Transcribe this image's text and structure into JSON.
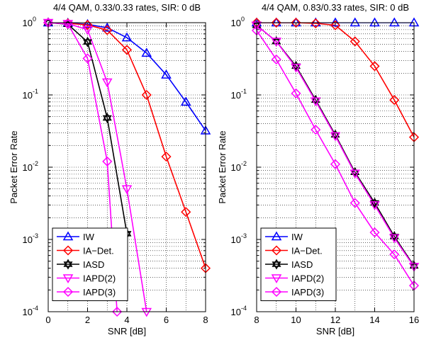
{
  "chart_data": [
    {
      "type": "line",
      "title": "4/4 QAM, 0.33/0.33 rates, SIR: 0 dB",
      "xlabel": "SNR [dB]",
      "ylabel": "Packet Error Rate",
      "yscale": "log",
      "xlim": [
        0,
        8
      ],
      "ylim": [
        0.0001,
        1
      ],
      "xticks": [
        "0",
        "2",
        "4",
        "6",
        "8"
      ],
      "grid": true,
      "legend_position": "bottom-right",
      "series": [
        {
          "name": "IW",
          "color": "#0000ff",
          "marker": "triangle-up",
          "x": [
            0,
            1,
            2,
            3,
            4,
            5,
            6,
            7,
            8
          ],
          "y": [
            1,
            0.99,
            0.95,
            0.85,
            0.62,
            0.38,
            0.19,
            0.08,
            0.032
          ]
        },
        {
          "name": "IA−Det.",
          "color": "#ff0000",
          "marker": "diamond",
          "x": [
            0,
            1,
            2,
            3,
            4,
            5,
            6,
            7,
            8
          ],
          "y": [
            1,
            0.98,
            0.93,
            0.79,
            0.42,
            0.1,
            0.014,
            0.0024,
            0.0004
          ]
        },
        {
          "name": "IASD",
          "color": "#000000",
          "marker": "hexagram",
          "x": [
            0,
            1,
            2,
            3,
            4
          ],
          "y": [
            1,
            0.95,
            0.54,
            0.048,
            0.0012
          ]
        },
        {
          "name": "IAPD(2)",
          "color": "#ff00ff",
          "marker": "triangle-down",
          "x": [
            0,
            1,
            2,
            3,
            4,
            5
          ],
          "y": [
            1,
            0.97,
            0.8,
            0.15,
            0.005,
            0.0001
          ]
        },
        {
          "name": "IAPD(3)",
          "color": "#ff00ff",
          "marker": "diamond",
          "x": [
            0,
            1,
            2,
            3,
            3.5
          ],
          "y": [
            1,
            0.96,
            0.32,
            0.012,
            0.0001
          ]
        }
      ]
    },
    {
      "type": "line",
      "title": "4/4 QAM, 0.83/0.33 rates, SIR: 0 dB",
      "xlabel": "SNR [dB]",
      "ylabel": "Packet Error Rate",
      "yscale": "log",
      "xlim": [
        8,
        16
      ],
      "ylim": [
        0.0001,
        1
      ],
      "xticks": [
        "8",
        "10",
        "12",
        "14",
        "16"
      ],
      "grid": true,
      "legend_position": "bottom-left",
      "series": [
        {
          "name": "IW",
          "color": "#0000ff",
          "marker": "triangle-up",
          "x": [
            8,
            9,
            10,
            11,
            12,
            13,
            14,
            15,
            16
          ],
          "y": [
            1,
            1,
            1,
            1,
            1,
            1,
            1,
            1,
            1
          ]
        },
        {
          "name": "IA−Det.",
          "color": "#ff0000",
          "marker": "diamond",
          "x": [
            8,
            9,
            10,
            11,
            12,
            13,
            14,
            15,
            16
          ],
          "y": [
            1,
            1,
            1,
            0.98,
            0.92,
            0.55,
            0.25,
            0.085,
            0.026
          ]
        },
        {
          "name": "IASD",
          "color": "#000000",
          "marker": "hexagram",
          "x": [
            8,
            9,
            10,
            11,
            12,
            13,
            14,
            15,
            16
          ],
          "y": [
            0.92,
            0.55,
            0.25,
            0.085,
            0.028,
            0.0085,
            0.0032,
            0.0011,
            0.00043
          ]
        },
        {
          "name": "IAPD(2)",
          "color": "#ff00ff",
          "marker": "triangle-down",
          "x": [
            8,
            9,
            10,
            11,
            12,
            13,
            14,
            15,
            16
          ],
          "y": [
            0.92,
            0.55,
            0.24,
            0.082,
            0.027,
            0.0082,
            0.003,
            0.00105,
            0.00042
          ]
        },
        {
          "name": "IAPD(3)",
          "color": "#ff00ff",
          "marker": "diamond",
          "x": [
            8,
            9,
            10,
            11,
            12,
            13,
            14,
            15,
            16
          ],
          "y": [
            0.78,
            0.31,
            0.105,
            0.033,
            0.011,
            0.0032,
            0.00125,
            0.00062,
            0.00023
          ]
        }
      ]
    }
  ]
}
